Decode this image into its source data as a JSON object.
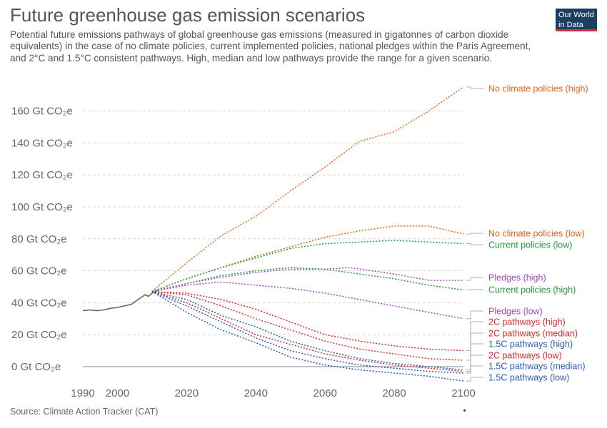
{
  "header": {
    "title": "Future greenhouse gas emission scenarios",
    "subtitle": "Potential future emissions pathways of global greenhouse gas emissions (measured in gigatonnes of carbon dioxide equivalents) in the case of no climate policies, current implemented policies, national pledges within the Paris Agreement, and 2°C and 1.5°C consistent pathways. High, median and low pathways provide the range for a given scenario."
  },
  "logo": {
    "line1": "Our World",
    "line2": "in Data"
  },
  "footer": {
    "source": "Source: Climate Action Tracker (CAT)"
  },
  "chart_data": {
    "type": "line",
    "title": "Future greenhouse gas emission scenarios",
    "xlim": [
      1990,
      2100
    ],
    "ylim": [
      0,
      170
    ],
    "x_ticks": [
      1990,
      2000,
      2020,
      2040,
      2060,
      2080,
      2100
    ],
    "y_ticks": [
      0,
      20,
      40,
      60,
      80,
      100,
      120,
      140,
      160
    ],
    "y_tick_labels": [
      "0 Gt CO₂e",
      "20 Gt CO₂e",
      "40 Gt CO₂e",
      "60 Gt CO₂e",
      "80 Gt CO₂e",
      "100 Gt CO₂e",
      "120 Gt CO₂e",
      "140 Gt CO₂e",
      "160 Gt CO₂e"
    ],
    "grid": "horizontal dashed",
    "legend": "line labels at right end",
    "colors": {
      "historical": "#666666",
      "no_policy": "#e8641b",
      "current": "#2a9a3c",
      "pledges": "#a347c4",
      "two_c": "#e02a2a",
      "one_five_c": "#2a5bb5"
    },
    "series": [
      {
        "label": "",
        "style": "solid",
        "color": "#666666",
        "points": [
          [
            1990,
            35
          ],
          [
            1992,
            35.5
          ],
          [
            1994,
            35
          ],
          [
            1996,
            35.5
          ],
          [
            1998,
            36.5
          ],
          [
            2000,
            37
          ],
          [
            2002,
            38
          ],
          [
            2004,
            39
          ],
          [
            2006,
            42
          ],
          [
            2008,
            45
          ],
          [
            2009,
            44
          ],
          [
            2010,
            46
          ],
          [
            2011,
            47
          ],
          [
            2012,
            48
          ]
        ]
      },
      {
        "label": "No climate policies (high)",
        "style": "dotted",
        "color": "#e8641b",
        "points": [
          [
            2010,
            47
          ],
          [
            2020,
            65
          ],
          [
            2030,
            82
          ],
          [
            2040,
            94
          ],
          [
            2050,
            110
          ],
          [
            2060,
            125
          ],
          [
            2070,
            141
          ],
          [
            2080,
            147
          ],
          [
            2090,
            160
          ],
          [
            2100,
            175
          ]
        ]
      },
      {
        "label": "No climate policies (low)",
        "style": "dotted",
        "color": "#e8641b",
        "points": [
          [
            2010,
            47
          ],
          [
            2020,
            55
          ],
          [
            2030,
            62
          ],
          [
            2040,
            69
          ],
          [
            2050,
            75
          ],
          [
            2060,
            81
          ],
          [
            2070,
            85
          ],
          [
            2080,
            88
          ],
          [
            2090,
            88
          ],
          [
            2100,
            83
          ]
        ]
      },
      {
        "label": "Current policies (low)",
        "style": "dotted",
        "color": "#2a9a3c",
        "points": [
          [
            2010,
            47
          ],
          [
            2020,
            55
          ],
          [
            2030,
            62
          ],
          [
            2040,
            68
          ],
          [
            2050,
            74
          ],
          [
            2060,
            77
          ],
          [
            2070,
            78
          ],
          [
            2080,
            79
          ],
          [
            2090,
            78
          ],
          [
            2100,
            77
          ]
        ]
      },
      {
        "label": "Current policies (high)",
        "style": "dotted",
        "color": "#2a9a3c",
        "points": [
          [
            2010,
            47
          ],
          [
            2020,
            52
          ],
          [
            2030,
            57
          ],
          [
            2040,
            60
          ],
          [
            2050,
            62
          ],
          [
            2060,
            61
          ],
          [
            2070,
            58
          ],
          [
            2080,
            55
          ],
          [
            2090,
            51
          ],
          [
            2100,
            48
          ]
        ]
      },
      {
        "label": "Pledges (high)",
        "style": "dotted",
        "color": "#a347c4",
        "points": [
          [
            2010,
            47
          ],
          [
            2020,
            52
          ],
          [
            2030,
            56
          ],
          [
            2040,
            59
          ],
          [
            2050,
            61
          ],
          [
            2060,
            61
          ],
          [
            2067,
            62
          ],
          [
            2080,
            58
          ],
          [
            2090,
            54
          ],
          [
            2100,
            54
          ]
        ]
      },
      {
        "label": "Pledges (low)",
        "style": "dotted",
        "color": "#a347c4",
        "points": [
          [
            2010,
            47
          ],
          [
            2020,
            51
          ],
          [
            2030,
            53
          ],
          [
            2040,
            51
          ],
          [
            2050,
            49
          ],
          [
            2060,
            46
          ],
          [
            2070,
            42
          ],
          [
            2080,
            38
          ],
          [
            2090,
            34
          ],
          [
            2100,
            30
          ]
        ]
      },
      {
        "label": "2C pathways (high)",
        "style": "dotted",
        "color": "#e02a2a",
        "points": [
          [
            2010,
            47
          ],
          [
            2020,
            46
          ],
          [
            2030,
            42
          ],
          [
            2040,
            36
          ],
          [
            2050,
            28
          ],
          [
            2060,
            20
          ],
          [
            2070,
            16
          ],
          [
            2080,
            13
          ],
          [
            2090,
            11
          ],
          [
            2100,
            10
          ]
        ]
      },
      {
        "label": "2C pathways (median)",
        "style": "dotted",
        "color": "#e02a2a",
        "points": [
          [
            2010,
            47
          ],
          [
            2020,
            45
          ],
          [
            2030,
            38
          ],
          [
            2040,
            30
          ],
          [
            2050,
            23
          ],
          [
            2060,
            16
          ],
          [
            2070,
            11
          ],
          [
            2080,
            8
          ],
          [
            2090,
            5
          ],
          [
            2100,
            4
          ]
        ]
      },
      {
        "label": "2C pathways (low)",
        "style": "dotted",
        "color": "#e02a2a",
        "points": [
          [
            2010,
            47
          ],
          [
            2020,
            40
          ],
          [
            2030,
            30
          ],
          [
            2040,
            20
          ],
          [
            2050,
            14
          ],
          [
            2060,
            8
          ],
          [
            2070,
            4
          ],
          [
            2080,
            1
          ],
          [
            2090,
            -1
          ],
          [
            2100,
            -3
          ]
        ]
      },
      {
        "label": "1.5C pathways (high)",
        "style": "dotted",
        "color": "#2a5bb5",
        "points": [
          [
            2010,
            47
          ],
          [
            2020,
            42
          ],
          [
            2030,
            32
          ],
          [
            2040,
            25
          ],
          [
            2050,
            16
          ],
          [
            2060,
            10
          ],
          [
            2070,
            5
          ],
          [
            2080,
            2
          ],
          [
            2090,
            0
          ],
          [
            2100,
            -2
          ]
        ]
      },
      {
        "label": "1.5C pathways (median)",
        "style": "dotted",
        "color": "#2a5bb5",
        "points": [
          [
            2010,
            47
          ],
          [
            2020,
            38
          ],
          [
            2030,
            28
          ],
          [
            2040,
            18
          ],
          [
            2050,
            10
          ],
          [
            2060,
            5
          ],
          [
            2070,
            1
          ],
          [
            2080,
            -1
          ],
          [
            2090,
            -3
          ],
          [
            2100,
            -4
          ]
        ]
      },
      {
        "label": "1.5C pathways (low)",
        "style": "dotted",
        "color": "#2a5bb5",
        "points": [
          [
            2010,
            47
          ],
          [
            2020,
            34
          ],
          [
            2030,
            23
          ],
          [
            2040,
            15
          ],
          [
            2050,
            6
          ],
          [
            2060,
            1
          ],
          [
            2070,
            -2
          ],
          [
            2080,
            -4
          ],
          [
            2090,
            -6
          ],
          [
            2100,
            -9
          ]
        ]
      }
    ]
  }
}
